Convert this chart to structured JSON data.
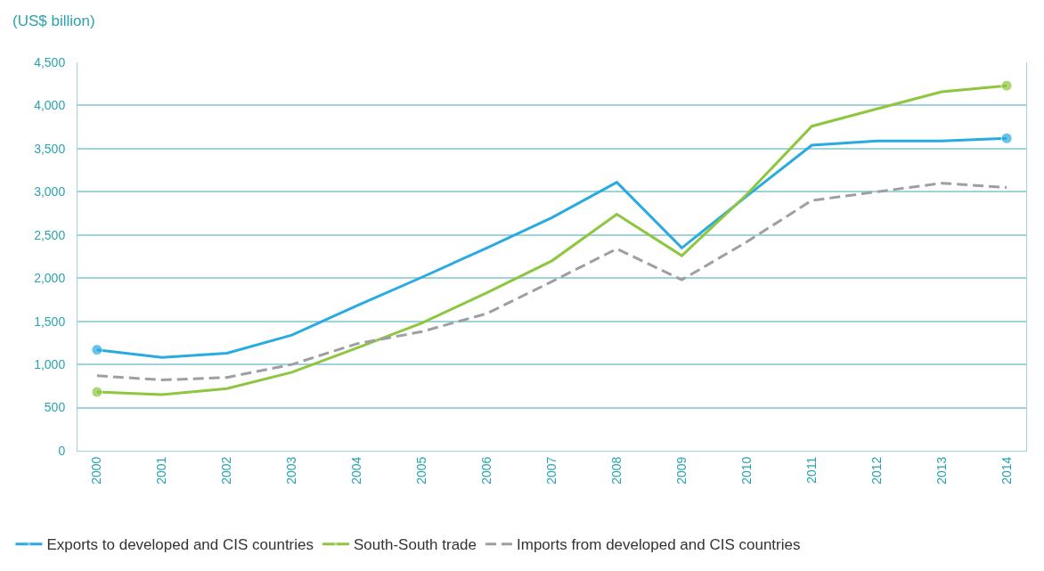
{
  "chart_data": {
    "type": "line",
    "ylabel": "(US$ billion)",
    "categories": [
      "2000",
      "2001",
      "2002",
      "2003",
      "2004",
      "2005",
      "2006",
      "2007",
      "2008",
      "2009",
      "2010",
      "2011",
      "2012",
      "2013",
      "2014"
    ],
    "series": [
      {
        "name": "Exports to developed and CIS countries",
        "color": "#29abe2",
        "line_style": "solid",
        "values": [
          1170,
          1080,
          1130,
          1340,
          1680,
          2010,
          2350,
          2700,
          3110,
          2350,
          2950,
          3540,
          3590,
          3590,
          3620
        ]
      },
      {
        "name": "South-South trade",
        "color": "#8dc63f",
        "line_style": "solid",
        "values": [
          680,
          650,
          720,
          910,
          1190,
          1480,
          1830,
          2200,
          2740,
          2260,
          2970,
          3760,
          3960,
          4160,
          4230
        ]
      },
      {
        "name": "Imports from developed and CIS countries",
        "color": "#9d9fa2",
        "line_style": "dashed",
        "values": [
          870,
          820,
          850,
          1000,
          1240,
          1380,
          1590,
          1960,
          2340,
          1980,
          2420,
          2900,
          3000,
          3100,
          3050
        ]
      }
    ],
    "ylim": [
      0,
      4500
    ],
    "yticks": [
      {
        "value": 0,
        "label": "0"
      },
      {
        "value": 500,
        "label": "500"
      },
      {
        "value": 1000,
        "label": "1,000"
      },
      {
        "value": 1500,
        "label": "1,500"
      },
      {
        "value": 2000,
        "label": "2,000"
      },
      {
        "value": 2500,
        "label": "2,500"
      },
      {
        "value": 3000,
        "label": "3,000"
      },
      {
        "value": 3500,
        "label": "3,500"
      },
      {
        "value": 4000,
        "label": "4,000"
      },
      {
        "value": 4500,
        "label": "4,500"
      }
    ],
    "grid": "y",
    "legend": "bottom"
  }
}
